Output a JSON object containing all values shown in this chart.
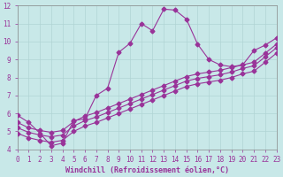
{
  "background_color": "#c8e8e8",
  "grid_color": "#b0d4d4",
  "line_color": "#993399",
  "xlabel": "Windchill (Refroidissement éolien,°C)",
  "xlim": [
    0,
    23
  ],
  "ylim": [
    4,
    12
  ],
  "xticks": [
    0,
    1,
    2,
    3,
    4,
    5,
    6,
    7,
    8,
    9,
    10,
    11,
    12,
    13,
    14,
    15,
    16,
    17,
    18,
    19,
    20,
    21,
    22,
    23
  ],
  "yticks": [
    4,
    5,
    6,
    7,
    8,
    9,
    10,
    11,
    12
  ],
  "line1_x": [
    0,
    1,
    2,
    3,
    4,
    5,
    6,
    7,
    8,
    9,
    10,
    11,
    12,
    13,
    14,
    15,
    16,
    17,
    18,
    19,
    20,
    21,
    22,
    23
  ],
  "line1_y": [
    5.9,
    5.5,
    4.9,
    4.2,
    4.35,
    5.6,
    5.7,
    7.0,
    7.4,
    9.4,
    9.9,
    11.0,
    10.6,
    11.8,
    11.75,
    11.25,
    9.85,
    9.0,
    8.7,
    8.6,
    8.7,
    9.5,
    9.8,
    10.2
  ],
  "line2_x": [
    0,
    1,
    2,
    3,
    4,
    5,
    6,
    7,
    8,
    9,
    10,
    11,
    12,
    13,
    14,
    15,
    16,
    17,
    18,
    19,
    20,
    21,
    22,
    23
  ],
  "line2_y": [
    5.5,
    5.2,
    5.05,
    4.95,
    5.05,
    5.55,
    5.85,
    6.05,
    6.3,
    6.55,
    6.8,
    7.05,
    7.3,
    7.55,
    7.8,
    8.05,
    8.2,
    8.3,
    8.4,
    8.55,
    8.7,
    8.85,
    9.35,
    9.85
  ],
  "line3_x": [
    0,
    1,
    2,
    3,
    4,
    5,
    6,
    7,
    8,
    9,
    10,
    11,
    12,
    13,
    14,
    15,
    16,
    17,
    18,
    19,
    20,
    21,
    22,
    23
  ],
  "line3_y": [
    5.2,
    4.95,
    4.8,
    4.7,
    4.8,
    5.3,
    5.6,
    5.8,
    6.05,
    6.3,
    6.55,
    6.8,
    7.05,
    7.3,
    7.55,
    7.8,
    7.95,
    8.05,
    8.15,
    8.3,
    8.5,
    8.65,
    9.15,
    9.65
  ],
  "line4_x": [
    0,
    1,
    2,
    3,
    4,
    5,
    6,
    7,
    8,
    9,
    10,
    11,
    12,
    13,
    14,
    15,
    16,
    17,
    18,
    19,
    20,
    21,
    22,
    23
  ],
  "line4_y": [
    4.9,
    4.65,
    4.5,
    4.4,
    4.5,
    5.0,
    5.3,
    5.5,
    5.75,
    6.0,
    6.25,
    6.5,
    6.75,
    7.0,
    7.25,
    7.5,
    7.65,
    7.75,
    7.85,
    8.0,
    8.2,
    8.35,
    8.85,
    9.35
  ],
  "marker_size": 2.5,
  "linewidth": 0.8,
  "tick_fontsize": 5.5,
  "label_fontsize": 6.0
}
